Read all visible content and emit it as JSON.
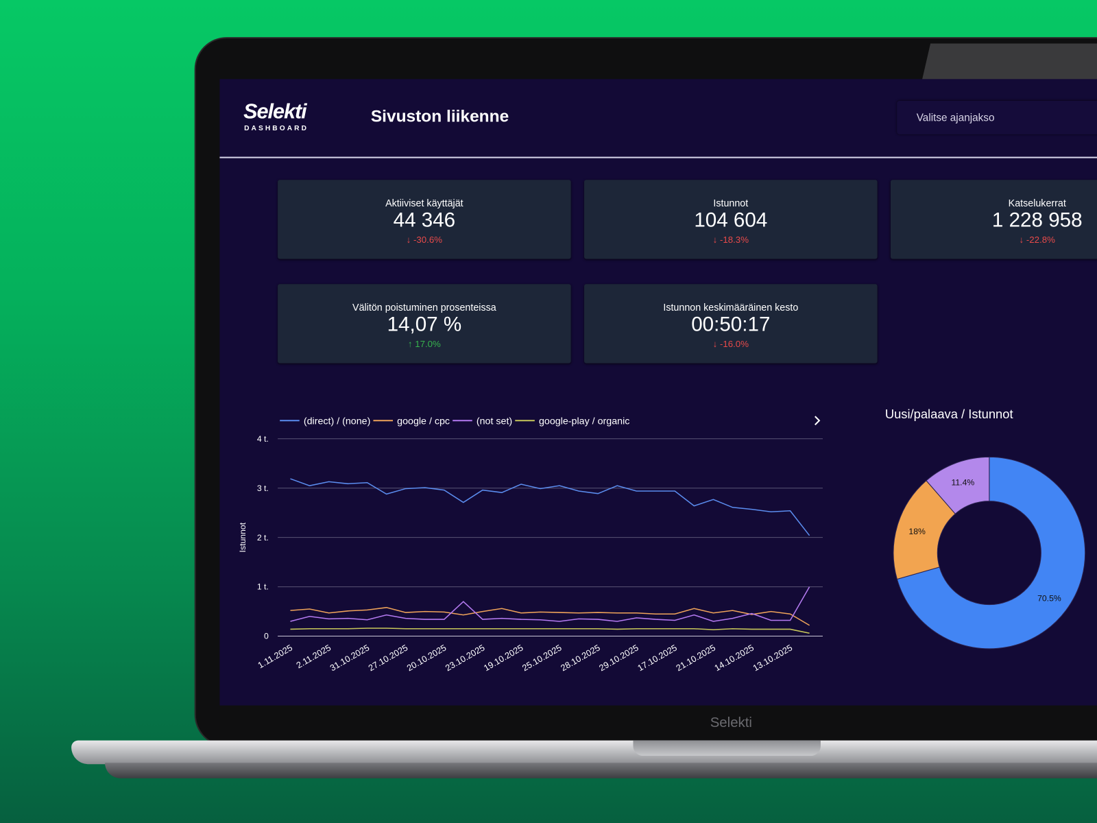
{
  "header": {
    "logo": "Selekti",
    "logo_subtitle": "DASHBOARD",
    "title": "Sivuston liikenne",
    "date_picker": "Valitse ajanjakso"
  },
  "kpis": [
    {
      "label": "Aktiiviset käyttäjät",
      "value": "44 346",
      "change": "-30.6%",
      "trend": "down"
    },
    {
      "label": "Istunnot",
      "value": "104 604",
      "change": "-18.3%",
      "trend": "down"
    },
    {
      "label": "Katselukerrat",
      "value": "1 228 958",
      "change": "-22.8%",
      "trend": "down"
    },
    {
      "label": "Välitön poistuminen prosenteissa",
      "value": "14,07 %",
      "change": "17.0%",
      "trend": "up"
    },
    {
      "label": "Istunnon keskimääräinen kesto",
      "value": "00:50:17",
      "change": "-16.0%",
      "trend": "down"
    }
  ],
  "line_chart": {
    "type": "line",
    "y_label": "Istunnot",
    "categories": [
      "1.11.2025",
      null,
      "2.11.2025",
      null,
      "31.10.2025",
      null,
      "27.10.2025",
      null,
      "20.10.2025",
      null,
      "23.10.2025",
      null,
      "19.10.2025",
      null,
      "25.10.2025",
      null,
      "28.10.2025",
      null,
      "29.10.2025",
      null,
      "17.10.2025",
      null,
      "21.10.2025",
      null,
      "14.10.2025",
      null,
      "13.10.2025",
      null
    ],
    "series": [
      {
        "name": "(direct) / (none)",
        "color": "#5b8def",
        "values": [
          3190,
          3050,
          3130,
          3090,
          3110,
          2880,
          2990,
          3010,
          2960,
          2710,
          2960,
          2910,
          3080,
          2990,
          3050,
          2940,
          2890,
          3050,
          2940,
          2940,
          2940,
          2640,
          2770,
          2610,
          2570,
          2520,
          2540,
          2040
        ]
      },
      {
        "name": "google / cpc",
        "color": "#f0a45a",
        "values": [
          520,
          550,
          470,
          510,
          530,
          580,
          480,
          500,
          490,
          430,
          500,
          560,
          470,
          490,
          480,
          470,
          480,
          470,
          470,
          450,
          450,
          560,
          470,
          520,
          440,
          500,
          450,
          220
        ]
      },
      {
        "name": "(not set)",
        "color": "#b57bf2",
        "values": [
          300,
          400,
          350,
          360,
          330,
          430,
          360,
          340,
          340,
          700,
          340,
          360,
          340,
          330,
          300,
          350,
          340,
          300,
          370,
          340,
          320,
          430,
          300,
          360,
          460,
          320,
          320,
          1000
        ]
      },
      {
        "name": "google-play / organic",
        "color": "#c8c85a",
        "values": [
          140,
          150,
          150,
          150,
          160,
          160,
          150,
          150,
          150,
          150,
          150,
          150,
          150,
          150,
          150,
          150,
          150,
          140,
          150,
          150,
          150,
          150,
          130,
          150,
          140,
          140,
          140,
          60
        ]
      }
    ],
    "ylim": [
      0,
      4000
    ],
    "yticks": [
      0,
      {
        "value": 1000,
        "label": "1 t."
      },
      {
        "value": 2000,
        "label": "2 t."
      },
      {
        "value": 3000,
        "label": "3 t."
      },
      {
        "value": 4000,
        "label": "4 t."
      }
    ],
    "grid": true
  },
  "donut_chart": {
    "type": "pie",
    "title": "Uusi/palaava / Istunnot",
    "values": [
      70.5,
      18,
      11.4
    ],
    "value_labels": [
      "70.5%",
      "18%",
      "11.4%"
    ],
    "colors": [
      "#4285f4",
      "#f2a450",
      "#b388eb"
    ]
  },
  "laptop_label": "Selekti"
}
